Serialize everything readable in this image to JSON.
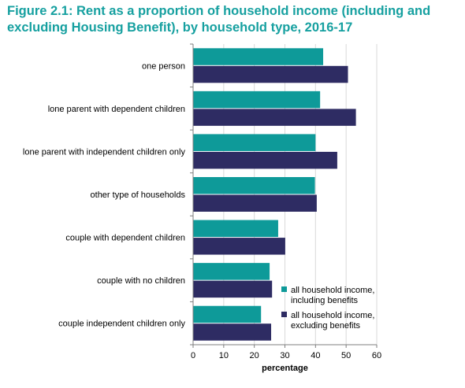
{
  "title": "Figure 2.1: Rent as a proportion of household income (including and excluding Housing Benefit), by household type, 2016-17",
  "colors": {
    "title": "#16a0a0",
    "including": "#0e9a99",
    "excluding": "#2e2c63"
  },
  "chart_data": {
    "type": "bar",
    "orientation": "horizontal",
    "categories": [
      "one person",
      "lone parent with dependent children",
      "lone parent with independent children only",
      "other type of households",
      "couple with dependent children",
      "couple with no children",
      "couple independent children only"
    ],
    "series": [
      {
        "name": "all household income, including benefits",
        "values": [
          42.5,
          41.5,
          40.0,
          39.8,
          27.8,
          25.0,
          22.2
        ]
      },
      {
        "name": "all household income, excluding benefits",
        "values": [
          50.6,
          53.2,
          47.1,
          40.4,
          30.1,
          25.8,
          25.5
        ]
      }
    ],
    "xlabel": "percentage",
    "ylabel": "",
    "xlim": [
      0,
      60
    ],
    "xticks": [
      0,
      10,
      20,
      30,
      40,
      50,
      60
    ],
    "grid": true,
    "legend": "bottom-right"
  }
}
